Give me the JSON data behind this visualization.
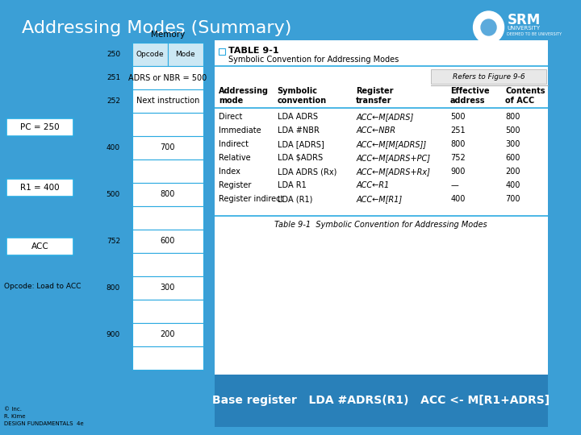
{
  "title": "Addressing Modes (Summary)",
  "bg_color": "#3b9fd6",
  "title_color": "#ffffff",
  "title_fontsize": 16,
  "memory_label": "Memory",
  "memory_rows": [
    {
      "addr": "250",
      "col1": "Opcode",
      "col2": "Mode",
      "is_header": true
    },
    {
      "addr": "251",
      "col1": "ADRS or NBR = 500",
      "col2": "",
      "is_header": false
    },
    {
      "addr": "252",
      "col1": "Next instruction",
      "col2": "",
      "is_header": false
    },
    {
      "addr": "",
      "col1": "",
      "col2": "",
      "is_header": false
    },
    {
      "addr": "400",
      "col1": "700",
      "col2": "",
      "is_header": false
    },
    {
      "addr": "",
      "col1": "",
      "col2": "",
      "is_header": false
    },
    {
      "addr": "500",
      "col1": "800",
      "col2": "",
      "is_header": false
    },
    {
      "addr": "",
      "col1": "",
      "col2": "",
      "is_header": false
    },
    {
      "addr": "752",
      "col1": "600",
      "col2": "",
      "is_header": false
    },
    {
      "addr": "",
      "col1": "",
      "col2": "",
      "is_header": false
    },
    {
      "addr": "800",
      "col1": "300",
      "col2": "",
      "is_header": false
    },
    {
      "addr": "",
      "col1": "",
      "col2": "",
      "is_header": false
    },
    {
      "addr": "900",
      "col1": "200",
      "col2": "",
      "is_header": false
    },
    {
      "addr": "",
      "col1": "",
      "col2": "",
      "is_header": false
    }
  ],
  "left_boxes": [
    {
      "label": "PC = 250"
    },
    {
      "label": "R1 = 400"
    },
    {
      "label": "ACC"
    }
  ],
  "opcode_label": "Opcode: Load to ACC",
  "table_title": "TABLE 9-1",
  "table_subtitle": "Symbolic Convention for Addressing Modes",
  "refers_text": "Refers to Figure 9-6",
  "table_caption": "Table 9-1  Symbolic Convention for Addressing Modes",
  "col_headers": [
    "Addressing\nmode",
    "Symbolic\nconvention",
    "Register\ntransfer",
    "Effective\naddress",
    "Contents\nof ACC"
  ],
  "table_rows": [
    [
      "Direct",
      "LDA ADRS",
      "ACC←M[ADRS]",
      "500",
      "800"
    ],
    [
      "Immediate",
      "LDA #NBR",
      "ACC←NBR",
      "251",
      "500"
    ],
    [
      "Indirect",
      "LDA [ADRS]",
      "ACC←M[M[ADRS]]",
      "800",
      "300"
    ],
    [
      "Relative",
      "LDA $ADRS",
      "ACC←M[ADRS+PC]",
      "752",
      "600"
    ],
    [
      "Index",
      "LDA ADRS (Rx)",
      "ACC←M[ADRS+Rx]",
      "900",
      "200"
    ],
    [
      "Register",
      "LDA R1",
      "ACC←R1",
      "—",
      "400"
    ],
    [
      "Register indirect",
      "LDA (R1)",
      "ACC←M[R1]",
      "400",
      "700"
    ]
  ],
  "bottom_text": "Base register   LDA #ADRS(R1)   ACC <- M[R1+ADRS]",
  "footer_lines": [
    "© Inc.",
    "R. Kime",
    "DESIGN FUNDAMENTALS  4e"
  ]
}
